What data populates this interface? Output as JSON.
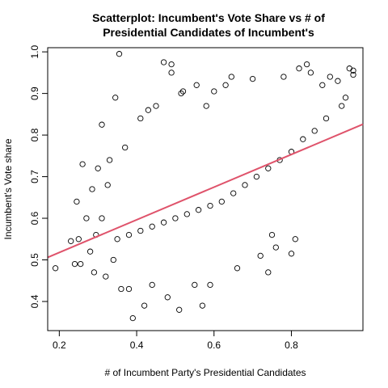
{
  "chart_data": {
    "type": "scatter",
    "title": [
      "Scatterplot: Incumbent's Vote Share vs # of",
      "Presidential Candidates of Incumbent's"
    ],
    "xlabel": "# of Incumbent Party's Presidential Candidates",
    "ylabel": "Incumbent's Vote share",
    "xlim": [
      0.17,
      0.985
    ],
    "ylim": [
      0.33,
      1.01
    ],
    "xticks": [
      0.2,
      0.4,
      0.6,
      0.8
    ],
    "yticks": [
      0.4,
      0.5,
      0.6,
      0.7,
      0.8,
      0.9,
      1.0
    ],
    "xtick_labels": [
      "0.2",
      "0.4",
      "0.6",
      "0.8"
    ],
    "ytick_labels": [
      "0.4",
      "0.5",
      "0.6",
      "0.7",
      "0.8",
      "0.9",
      "1.0"
    ],
    "grid": false,
    "legend": "none",
    "point_color": "#000000",
    "fit_line": {
      "color": "#DF536B",
      "x": [
        0.17,
        0.985
      ],
      "y": [
        0.506,
        0.826
      ]
    },
    "points": [
      [
        0.19,
        0.48
      ],
      [
        0.23,
        0.545
      ],
      [
        0.24,
        0.49
      ],
      [
        0.245,
        0.64
      ],
      [
        0.25,
        0.55
      ],
      [
        0.255,
        0.49
      ],
      [
        0.26,
        0.73
      ],
      [
        0.27,
        0.6
      ],
      [
        0.28,
        0.52
      ],
      [
        0.285,
        0.67
      ],
      [
        0.29,
        0.47
      ],
      [
        0.295,
        0.56
      ],
      [
        0.3,
        0.72
      ],
      [
        0.31,
        0.825
      ],
      [
        0.31,
        0.6
      ],
      [
        0.32,
        0.46
      ],
      [
        0.325,
        0.68
      ],
      [
        0.33,
        0.74
      ],
      [
        0.34,
        0.5
      ],
      [
        0.345,
        0.89
      ],
      [
        0.355,
        0.995
      ],
      [
        0.36,
        0.43
      ],
      [
        0.37,
        0.77
      ],
      [
        0.38,
        0.43
      ],
      [
        0.39,
        0.36
      ],
      [
        0.41,
        0.84
      ],
      [
        0.42,
        0.39
      ],
      [
        0.43,
        0.86
      ],
      [
        0.44,
        0.44
      ],
      [
        0.45,
        0.87
      ],
      [
        0.47,
        0.975
      ],
      [
        0.48,
        0.41
      ],
      [
        0.49,
        0.97
      ],
      [
        0.49,
        0.95
      ],
      [
        0.51,
        0.38
      ],
      [
        0.515,
        0.9
      ],
      [
        0.52,
        0.905
      ],
      [
        0.55,
        0.44
      ],
      [
        0.555,
        0.92
      ],
      [
        0.57,
        0.39
      ],
      [
        0.58,
        0.87
      ],
      [
        0.59,
        0.44
      ],
      [
        0.6,
        0.905
      ],
      [
        0.63,
        0.92
      ],
      [
        0.645,
        0.94
      ],
      [
        0.66,
        0.48
      ],
      [
        0.7,
        0.935
      ],
      [
        0.72,
        0.51
      ],
      [
        0.74,
        0.47
      ],
      [
        0.75,
        0.56
      ],
      [
        0.76,
        0.53
      ],
      [
        0.78,
        0.94
      ],
      [
        0.8,
        0.515
      ],
      [
        0.81,
        0.55
      ],
      [
        0.82,
        0.96
      ],
      [
        0.84,
        0.97
      ],
      [
        0.85,
        0.95
      ],
      [
        0.88,
        0.92
      ],
      [
        0.9,
        0.94
      ],
      [
        0.92,
        0.93
      ],
      [
        0.94,
        0.89
      ],
      [
        0.95,
        0.96
      ],
      [
        0.96,
        0.955
      ],
      [
        0.96,
        0.945
      ],
      [
        0.93,
        0.87
      ],
      [
        0.89,
        0.84
      ],
      [
        0.86,
        0.81
      ],
      [
        0.83,
        0.79
      ],
      [
        0.8,
        0.76
      ],
      [
        0.77,
        0.74
      ],
      [
        0.74,
        0.72
      ],
      [
        0.71,
        0.7
      ],
      [
        0.68,
        0.68
      ],
      [
        0.65,
        0.66
      ],
      [
        0.62,
        0.64
      ],
      [
        0.59,
        0.63
      ],
      [
        0.56,
        0.62
      ],
      [
        0.53,
        0.61
      ],
      [
        0.5,
        0.6
      ],
      [
        0.47,
        0.59
      ],
      [
        0.44,
        0.58
      ],
      [
        0.41,
        0.57
      ],
      [
        0.38,
        0.56
      ],
      [
        0.35,
        0.55
      ]
    ]
  }
}
